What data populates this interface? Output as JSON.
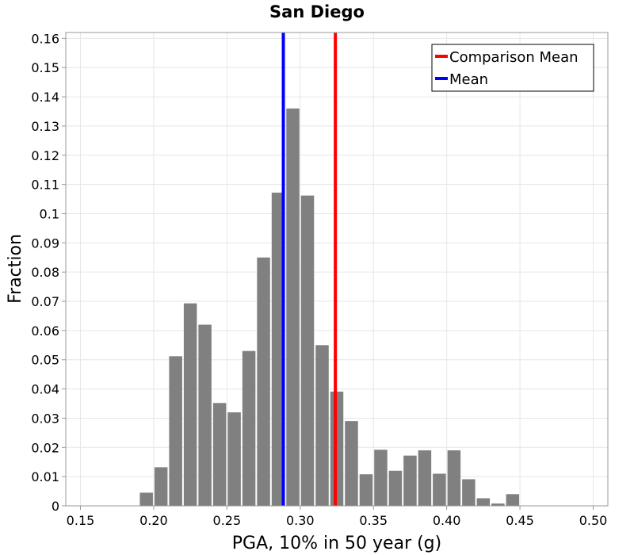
{
  "chart_data": {
    "type": "bar",
    "title": "San Diego",
    "xlabel": "PGA, 10% in 50 year (g)",
    "ylabel": "Fraction",
    "xlim": [
      0.14,
      0.51
    ],
    "ylim": [
      0,
      0.162
    ],
    "x_ticks": [
      "0.15",
      "0.20",
      "0.25",
      "0.30",
      "0.35",
      "0.40",
      "0.45",
      "0.50"
    ],
    "y_ticks": [
      "0",
      "0.01",
      "0.02",
      "0.03",
      "0.04",
      "0.05",
      "0.06",
      "0.07",
      "0.08",
      "0.09",
      "0.1",
      "0.11",
      "0.12",
      "0.13",
      "0.14",
      "0.15",
      "0.16"
    ],
    "bin_width": 0.01,
    "bin_centers": [
      0.195,
      0.205,
      0.215,
      0.225,
      0.235,
      0.245,
      0.255,
      0.265,
      0.275,
      0.285,
      0.295,
      0.305,
      0.315,
      0.325,
      0.335,
      0.345,
      0.355,
      0.365,
      0.375,
      0.385,
      0.395,
      0.405,
      0.415,
      0.425,
      0.435,
      0.445
    ],
    "values": [
      0.0045,
      0.0132,
      0.0512,
      0.0693,
      0.062,
      0.0352,
      0.032,
      0.053,
      0.085,
      0.1072,
      0.136,
      0.1062,
      0.055,
      0.0391,
      0.029,
      0.0108,
      0.0192,
      0.012,
      0.0172,
      0.019,
      0.011,
      0.019,
      0.0091,
      0.0026,
      0.0008,
      0.004
    ],
    "series": [
      {
        "name": "Comparison Mean",
        "x": 0.324,
        "color": "#ff0000"
      },
      {
        "name": "Mean",
        "x": 0.2885,
        "color": "#0000ff"
      }
    ],
    "bar_color": "#808080",
    "grid": true,
    "legend_position": "top-right"
  }
}
